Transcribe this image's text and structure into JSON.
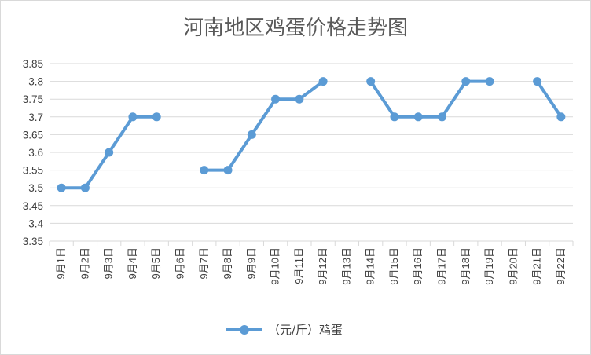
{
  "chart_data": {
    "type": "line",
    "title": "河南地区鸡蛋价格走势图",
    "xlabel": "",
    "ylabel": "",
    "categories": [
      "9月1日",
      "9月2日",
      "9月3日",
      "9月4日",
      "9月5日",
      "9月6日",
      "9月7日",
      "9月8日",
      "9月9日",
      "9月10日",
      "9月11日",
      "9月12日",
      "9月13日",
      "9月14日",
      "9月15日",
      "9月16日",
      "9月17日",
      "9月18日",
      "9月19日",
      "9月20日",
      "9月21日",
      "9月22日"
    ],
    "series": [
      {
        "name": "（元/斤）鸡蛋",
        "values": [
          3.5,
          3.5,
          3.6,
          3.7,
          3.7,
          null,
          3.55,
          3.55,
          3.65,
          3.75,
          3.75,
          3.8,
          null,
          3.8,
          3.7,
          3.7,
          3.7,
          3.8,
          3.8,
          null,
          3.8,
          3.7
        ],
        "color": "#5b9bd5"
      }
    ],
    "ylim": [
      3.35,
      3.85
    ],
    "yticks": [
      "3.85",
      "3.8",
      "3.75",
      "3.7",
      "3.65",
      "3.6",
      "3.55",
      "3.5",
      "3.45",
      "3.4",
      "3.35"
    ],
    "grid": true,
    "legend_position": "bottom"
  }
}
